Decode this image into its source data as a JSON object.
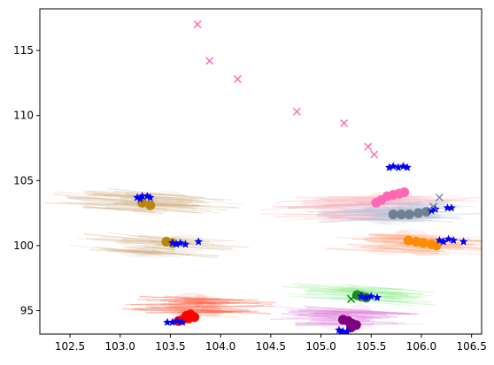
{
  "chart_data": {
    "type": "scatter",
    "title": "",
    "xlabel": "",
    "ylabel": "",
    "xlim": [
      102.2,
      106.6
    ],
    "ylim": [
      93.2,
      118.2
    ],
    "xticks": [
      102.5,
      103.0,
      103.5,
      104.0,
      104.5,
      105.0,
      105.5,
      106.0,
      106.5
    ],
    "xtick_labels": [
      "102.5",
      "103.0",
      "103.5",
      "104.0",
      "104.5",
      "105.0",
      "105.5",
      "106.0",
      "106.5"
    ],
    "yticks": [
      95,
      100,
      105,
      110,
      115
    ],
    "ytick_labels": [
      "95",
      "100",
      "105",
      "110",
      "115"
    ],
    "grid": false,
    "series": [
      {
        "name": "pink-x",
        "marker": "x",
        "color": "#ff69b4",
        "points": [
          [
            103.77,
            117.0
          ],
          [
            103.89,
            114.2
          ],
          [
            104.17,
            112.8
          ],
          [
            104.76,
            110.3
          ],
          [
            105.23,
            109.4
          ],
          [
            105.47,
            107.6
          ],
          [
            105.53,
            107.0
          ]
        ]
      },
      {
        "name": "gray-x",
        "marker": "x",
        "color": "#708090",
        "points": [
          [
            106.18,
            103.7
          ],
          [
            106.12,
            103.0
          ]
        ]
      },
      {
        "name": "green-x",
        "marker": "x",
        "color": "#008000",
        "points": [
          [
            105.3,
            95.9
          ]
        ]
      },
      {
        "name": "goldenrod-dots",
        "marker": "o",
        "color": "#b8860b",
        "points": [
          [
            103.3,
            103.1
          ],
          [
            103.22,
            103.3
          ]
        ]
      },
      {
        "name": "olive-dots",
        "marker": "o",
        "color": "#b8860b",
        "points": [
          [
            103.46,
            100.3
          ],
          [
            103.52,
            100.2
          ]
        ]
      },
      {
        "name": "red-dots",
        "marker": "o",
        "color": "#ff0000",
        "points": [
          [
            103.62,
            94.3
          ],
          [
            103.66,
            94.6
          ],
          [
            103.7,
            94.7
          ],
          [
            103.74,
            94.5
          ],
          [
            103.68,
            94.4
          ],
          [
            103.58,
            94.2
          ]
        ]
      },
      {
        "name": "hotpink-dots",
        "marker": "o",
        "color": "#ff69b4",
        "points": [
          [
            105.55,
            103.3
          ],
          [
            105.6,
            103.5
          ],
          [
            105.66,
            103.8
          ],
          [
            105.72,
            103.9
          ],
          [
            105.78,
            104.0
          ],
          [
            105.83,
            104.1
          ]
        ]
      },
      {
        "name": "slategray-dots",
        "marker": "o",
        "color": "#708090",
        "points": [
          [
            105.72,
            102.4
          ],
          [
            105.8,
            102.4
          ],
          [
            105.88,
            102.4
          ],
          [
            105.97,
            102.5
          ],
          [
            106.05,
            102.6
          ]
        ]
      },
      {
        "name": "orange-dots",
        "marker": "o",
        "color": "#ff8c00",
        "points": [
          [
            105.87,
            100.4
          ],
          [
            105.95,
            100.3
          ],
          [
            106.02,
            100.2
          ],
          [
            106.1,
            100.1
          ],
          [
            106.15,
            100.0
          ]
        ]
      },
      {
        "name": "green-dots",
        "marker": "o",
        "color": "#228b22",
        "points": [
          [
            105.36,
            96.2
          ],
          [
            105.4,
            96.1
          ],
          [
            105.45,
            96.0
          ]
        ]
      },
      {
        "name": "purple-dots",
        "marker": "o",
        "color": "#800080",
        "points": [
          [
            105.22,
            94.3
          ],
          [
            105.27,
            94.2
          ],
          [
            105.31,
            94.0
          ],
          [
            105.35,
            93.9
          ],
          [
            105.3,
            93.7
          ]
        ]
      },
      {
        "name": "blue-stars",
        "marker": "star",
        "color": "#0000ff",
        "points": [
          [
            103.17,
            103.7
          ],
          [
            103.22,
            103.8
          ],
          [
            103.27,
            103.8
          ],
          [
            103.3,
            103.7
          ],
          [
            103.2,
            103.6
          ],
          [
            103.52,
            100.2
          ],
          [
            103.56,
            100.1
          ],
          [
            103.6,
            100.2
          ],
          [
            103.65,
            100.1
          ],
          [
            103.78,
            100.3
          ],
          [
            103.47,
            94.1
          ],
          [
            103.52,
            94.1
          ],
          [
            103.57,
            94.2
          ],
          [
            103.62,
            94.1
          ],
          [
            105.68,
            106.0
          ],
          [
            105.72,
            106.1
          ],
          [
            105.77,
            106.0
          ],
          [
            105.82,
            106.1
          ],
          [
            105.86,
            106.0
          ],
          [
            106.1,
            102.7
          ],
          [
            106.14,
            102.8
          ],
          [
            106.26,
            102.9
          ],
          [
            106.3,
            102.9
          ],
          [
            106.18,
            100.4
          ],
          [
            106.22,
            100.3
          ],
          [
            106.27,
            100.5
          ],
          [
            106.32,
            100.4
          ],
          [
            106.42,
            100.3
          ],
          [
            105.4,
            96.1
          ],
          [
            105.45,
            96.0
          ],
          [
            105.5,
            96.1
          ],
          [
            105.56,
            96.0
          ],
          [
            105.18,
            93.5
          ],
          [
            105.22,
            93.4
          ],
          [
            105.26,
            93.4
          ],
          [
            105.2,
            93.3
          ]
        ]
      }
    ],
    "haze_clusters": [
      {
        "name": "tan-streaks",
        "color": "#d2b48c",
        "center": [
          103.2,
          103.4
        ],
        "spread": [
          0.9,
          1.4
        ],
        "count": 45,
        "slope": -0.5
      },
      {
        "name": "tan-streaks-low",
        "color": "#d2b48c",
        "center": [
          103.4,
          100.0
        ],
        "spread": [
          0.8,
          1.2
        ],
        "count": 35,
        "slope": -0.6
      },
      {
        "name": "red-haze",
        "color": "#ff6347",
        "center": [
          103.8,
          95.3
        ],
        "spread": [
          0.4,
          1.4
        ],
        "count": 35,
        "slope": -0.2
      },
      {
        "name": "pink-haze",
        "color": "#ffb6c1",
        "center": [
          105.5,
          102.9
        ],
        "spread": [
          1.0,
          1.8
        ],
        "count": 80,
        "slope": 0.15
      },
      {
        "name": "lightblue-haze",
        "color": "#b0c4de",
        "center": [
          105.8,
          102.6
        ],
        "spread": [
          0.7,
          1.3
        ],
        "count": 40,
        "slope": 0.05
      },
      {
        "name": "peach-haze",
        "color": "#ffa07a",
        "center": [
          105.9,
          100.2
        ],
        "spread": [
          0.6,
          1.3
        ],
        "count": 35,
        "slope": -0.2
      },
      {
        "name": "green-haze",
        "color": "#90ee90",
        "center": [
          105.5,
          96.2
        ],
        "spread": [
          0.5,
          1.1
        ],
        "count": 30,
        "slope": -0.4
      },
      {
        "name": "violet-haze",
        "color": "#da70d6",
        "center": [
          105.2,
          94.5
        ],
        "spread": [
          0.5,
          1.2
        ],
        "count": 30,
        "slope": -0.2
      }
    ]
  }
}
